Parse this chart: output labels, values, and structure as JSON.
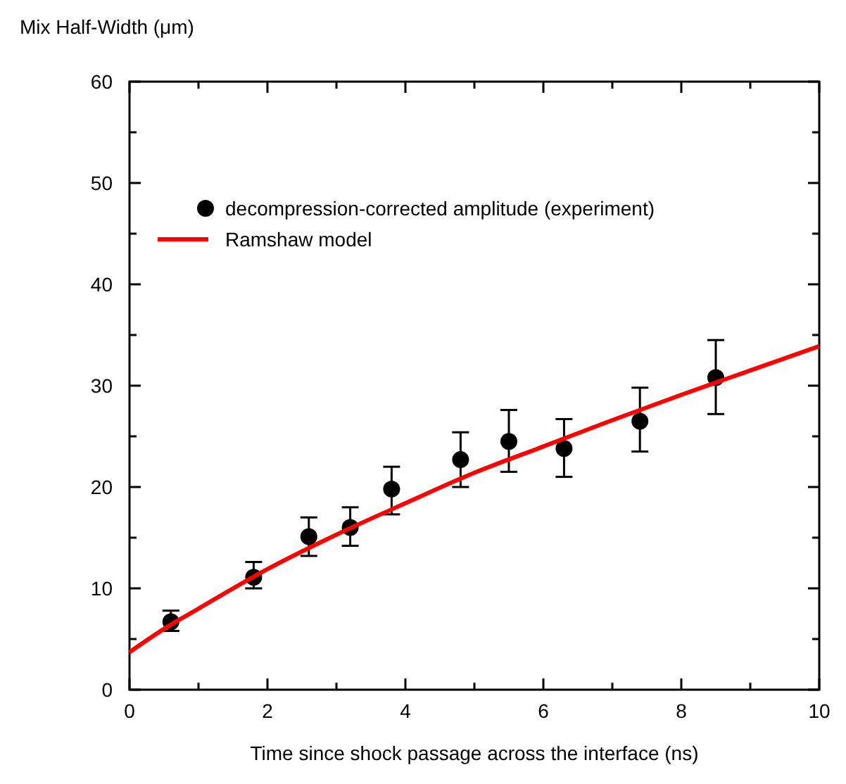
{
  "chart_data": {
    "type": "scatter",
    "xlabel": "Time since shock passage across the interface (ns)",
    "ylabel": "Mix Half-Width (μm)",
    "xlim": [
      0,
      10
    ],
    "ylim": [
      0,
      60
    ],
    "xticks": [
      0,
      {
        "value": 1,
        "label": null
      },
      2,
      {
        "value": 3,
        "label": null
      },
      4,
      {
        "value": 5,
        "label": null
      },
      6,
      {
        "value": 7,
        "label": null
      },
      8,
      {
        "value": 9,
        "label": null
      },
      10
    ],
    "yticks": [
      0,
      {
        "value": 5,
        "label": null
      },
      10,
      {
        "value": 15,
        "label": null
      },
      20,
      {
        "value": 25,
        "label": null
      },
      30,
      {
        "value": 35,
        "label": null
      },
      40,
      {
        "value": 45,
        "label": null
      },
      50,
      {
        "value": 55,
        "label": null
      },
      60
    ],
    "legend": "top left",
    "grid": false,
    "series": [
      {
        "name": "decompression-corrected amplitude (experiment)",
        "marker": "circle",
        "color": "#000000",
        "x": [
          0.6,
          1.8,
          2.6,
          3.2,
          3.8,
          4.8,
          5.5,
          6.3,
          7.4,
          8.5
        ],
        "values": [
          6.7,
          11.1,
          15.1,
          16,
          19.8,
          22.7,
          24.5,
          23.8,
          26.5,
          30.8
        ],
        "errors": [
          [
            5.8,
            7.8
          ],
          [
            10,
            12.6
          ],
          [
            13.2,
            17
          ],
          [
            14.2,
            18
          ],
          [
            17.3,
            22
          ],
          [
            20,
            25.4
          ],
          [
            21.5,
            27.6
          ],
          [
            21,
            26.7
          ],
          [
            23.5,
            29.8
          ],
          [
            27.2,
            34.5
          ]
        ]
      },
      {
        "name": "Ramshaw model",
        "type": "line",
        "marker": "none",
        "line_style": "solid",
        "color": "#ff0000",
        "x": [
          0,
          0.5,
          1,
          2,
          3,
          4,
          5,
          6,
          7,
          8,
          9,
          10
        ],
        "values": [
          3.7,
          6,
          8,
          11.9,
          15.3,
          18.4,
          21.4,
          24,
          26.6,
          29.1,
          31.5,
          33.9
        ]
      }
    ]
  }
}
